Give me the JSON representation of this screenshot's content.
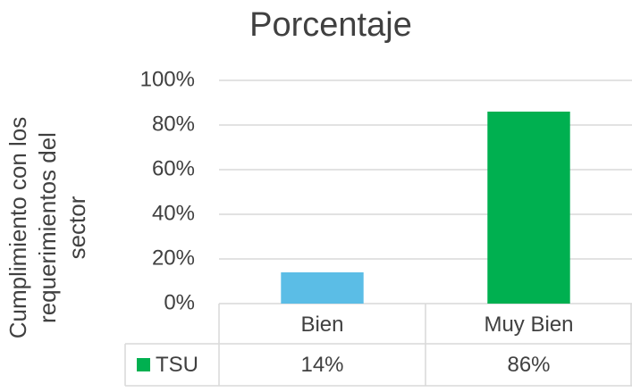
{
  "chart_data": {
    "type": "bar",
    "title": "Porcentaje",
    "ylabel": [
      "Cumplimiento con los",
      "requerimientos del",
      "sector"
    ],
    "categories": [
      "Bien",
      "Muy Bien"
    ],
    "series": [
      {
        "name": "TSU",
        "color": "#00b050",
        "colors": [
          "#5bbde6",
          "#00b050"
        ],
        "values": [
          14,
          86
        ],
        "value_labels": [
          "14%",
          "86%"
        ]
      }
    ],
    "ylim": [
      0,
      100
    ],
    "yticks": [
      {
        "value": 0,
        "label": "0%"
      },
      {
        "value": 20,
        "label": "20%"
      },
      {
        "value": 40,
        "label": "40%"
      },
      {
        "value": 60,
        "label": "60%"
      },
      {
        "value": 80,
        "label": "80%"
      },
      {
        "value": 100,
        "label": "100%"
      }
    ],
    "grid": true
  }
}
